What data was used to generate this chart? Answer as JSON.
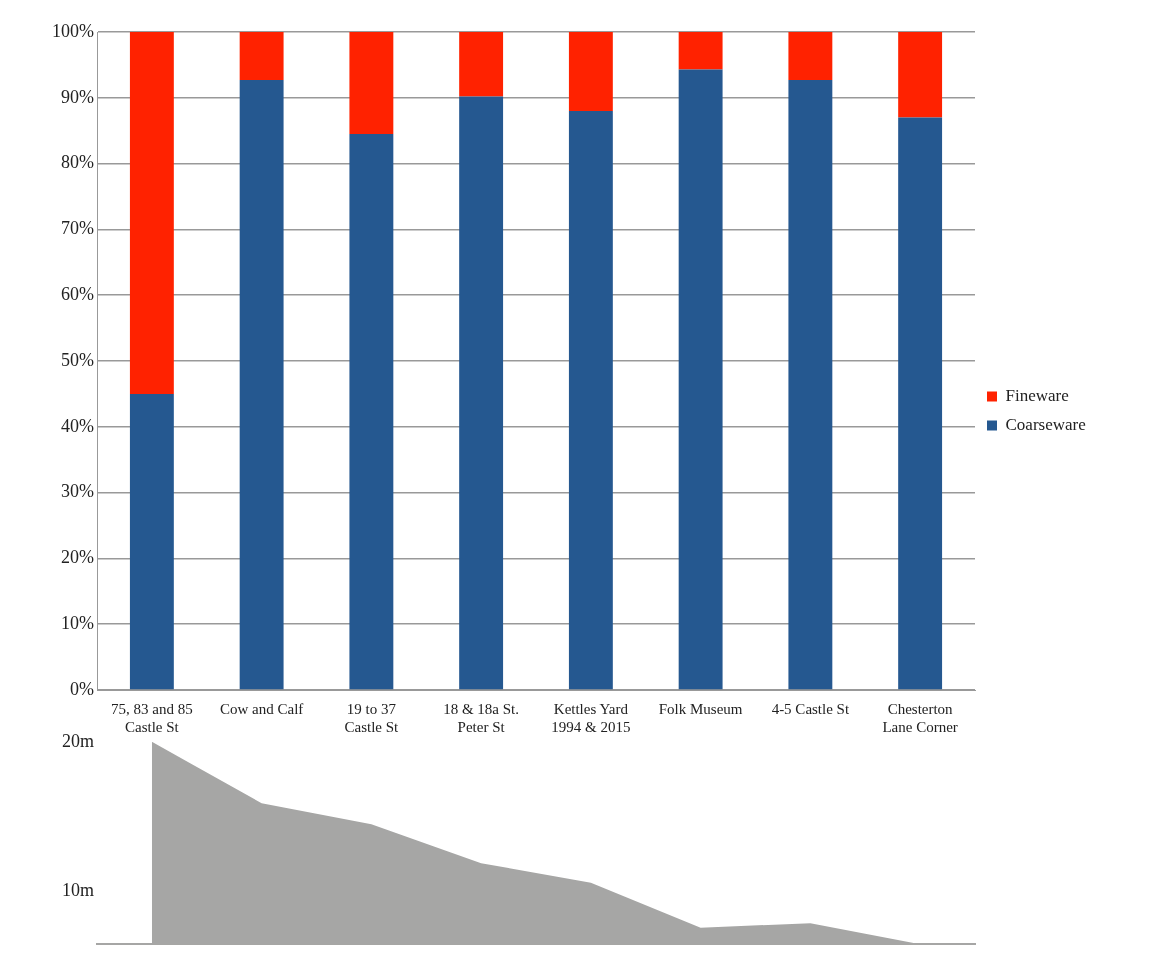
{
  "chart_data": [
    {
      "type": "bar",
      "stacked": true,
      "categories": [
        "75, 83 and 85 Castle St",
        "Cow and Calf",
        "19 to 37 Castle St",
        "18 & 18a St. Peter St",
        "Kettles Yard 1994 & 2015",
        "Folk Museum",
        "4-5 Castle St",
        "Chesterton Lane Corner"
      ],
      "series": [
        {
          "name": "Coarseware",
          "color": "#255890",
          "values": [
            45,
            92.7,
            84.5,
            90.2,
            88,
            94.3,
            92.7,
            87
          ]
        },
        {
          "name": "Fineware",
          "color": "#ff2200",
          "values": [
            55,
            7.3,
            15.5,
            9.8,
            12,
            5.7,
            7.3,
            13
          ]
        }
      ],
      "ylim": [
        0,
        100
      ],
      "yticks": [
        {
          "value": 0,
          "label": "0%"
        },
        {
          "value": 10,
          "label": "10%"
        },
        {
          "value": 20,
          "label": "20%"
        },
        {
          "value": 30,
          "label": "30%"
        },
        {
          "value": 40,
          "label": "40%"
        },
        {
          "value": 50,
          "label": "50%"
        },
        {
          "value": 60,
          "label": "60%"
        },
        {
          "value": 70,
          "label": "70%"
        },
        {
          "value": 80,
          "label": "80%"
        },
        {
          "value": 90,
          "label": "90%"
        },
        {
          "value": 100,
          "label": "100%"
        }
      ],
      "grid": "y",
      "legend": "right"
    },
    {
      "type": "area",
      "categories": [
        null,
        null,
        null,
        null,
        null,
        null,
        null,
        null
      ],
      "color": "#a6a6a5",
      "values": [
        20,
        15.9,
        14.5,
        11.9,
        10.6,
        7.6,
        7.9,
        6.5
      ],
      "ylim": [
        6.5,
        20
      ],
      "yticks": [
        {
          "value": 20,
          "label": "20m"
        },
        {
          "value": 10,
          "label": "10m"
        }
      ],
      "tick_labels": "y",
      "grid": false,
      "legend": false
    }
  ]
}
